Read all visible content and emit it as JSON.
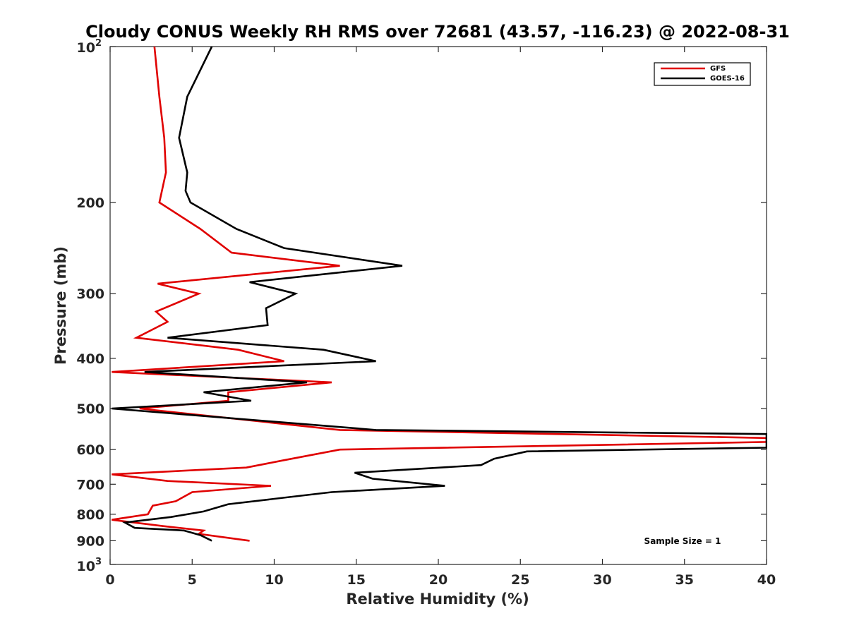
{
  "chart_data": {
    "type": "line",
    "title": "Cloudy CONUS Weekly RH RMS over 72681 (43.57, -116.23) @ 2022-08-31",
    "xlabel": "Relative Humidity (%)",
    "ylabel": "Pressure (mb)",
    "xlim": [
      0,
      40
    ],
    "ylim": [
      100,
      1000
    ],
    "y_scale": "log",
    "y_reversed": true,
    "x_ticks": [
      "0",
      "5",
      "10",
      "15",
      "20",
      "25",
      "30",
      "35",
      "40"
    ],
    "y_ticks": [
      {
        "value": 100,
        "base": "10",
        "exp": "2"
      },
      {
        "value": 200,
        "label": "200"
      },
      {
        "value": 300,
        "label": "300"
      },
      {
        "value": 400,
        "label": "400"
      },
      {
        "value": 500,
        "label": "500"
      },
      {
        "value": 600,
        "label": "600"
      },
      {
        "value": 700,
        "label": "700"
      },
      {
        "value": 800,
        "label": "800"
      },
      {
        "value": 900,
        "label": "900"
      },
      {
        "value": 1000,
        "base": "10",
        "exp": "3"
      }
    ],
    "grid": false,
    "legend_position": "top-right",
    "annotation": "Sample Size = 1",
    "series": [
      {
        "name": "GFS",
        "color": "#e00000",
        "points": [
          {
            "x": 2.7,
            "y": 100
          },
          {
            "x": 3.0,
            "y": 125
          },
          {
            "x": 3.3,
            "y": 150
          },
          {
            "x": 3.4,
            "y": 175
          },
          {
            "x": 3.0,
            "y": 200
          },
          {
            "x": 5.5,
            "y": 225
          },
          {
            "x": 7.4,
            "y": 250
          },
          {
            "x": 14.0,
            "y": 265
          },
          {
            "x": 2.9,
            "y": 287
          },
          {
            "x": 5.4,
            "y": 300
          },
          {
            "x": 2.8,
            "y": 325
          },
          {
            "x": 3.5,
            "y": 340
          },
          {
            "x": 1.6,
            "y": 365
          },
          {
            "x": 7.8,
            "y": 385
          },
          {
            "x": 10.6,
            "y": 405
          },
          {
            "x": 0.1,
            "y": 425
          },
          {
            "x": 13.5,
            "y": 445
          },
          {
            "x": 7.2,
            "y": 465
          },
          {
            "x": 7.2,
            "y": 483
          },
          {
            "x": 1.8,
            "y": 500
          },
          {
            "x": 14.0,
            "y": 550
          },
          {
            "x": 40.0,
            "y": 570
          },
          {
            "x": 40.0,
            "y": 580
          },
          {
            "x": 14.0,
            "y": 600
          },
          {
            "x": 10.5,
            "y": 630
          },
          {
            "x": 8.3,
            "y": 650
          },
          {
            "x": 0.1,
            "y": 670
          },
          {
            "x": 3.5,
            "y": 690
          },
          {
            "x": 9.8,
            "y": 705
          },
          {
            "x": 5.0,
            "y": 725
          },
          {
            "x": 4.0,
            "y": 755
          },
          {
            "x": 2.6,
            "y": 770
          },
          {
            "x": 2.3,
            "y": 800
          },
          {
            "x": 0.1,
            "y": 820
          },
          {
            "x": 3.2,
            "y": 843
          },
          {
            "x": 5.7,
            "y": 860
          },
          {
            "x": 5.4,
            "y": 873
          },
          {
            "x": 8.5,
            "y": 900
          }
        ]
      },
      {
        "name": "GOES-16",
        "color": "#000000",
        "points": [
          {
            "x": 6.2,
            "y": 100
          },
          {
            "x": 4.7,
            "y": 125
          },
          {
            "x": 4.2,
            "y": 150
          },
          {
            "x": 4.7,
            "y": 175
          },
          {
            "x": 4.6,
            "y": 190
          },
          {
            "x": 4.9,
            "y": 200
          },
          {
            "x": 7.7,
            "y": 225
          },
          {
            "x": 10.6,
            "y": 245
          },
          {
            "x": 17.8,
            "y": 265
          },
          {
            "x": 8.5,
            "y": 285
          },
          {
            "x": 11.3,
            "y": 300
          },
          {
            "x": 9.5,
            "y": 320
          },
          {
            "x": 9.6,
            "y": 345
          },
          {
            "x": 3.5,
            "y": 365
          },
          {
            "x": 13.0,
            "y": 385
          },
          {
            "x": 16.2,
            "y": 405
          },
          {
            "x": 2.1,
            "y": 425
          },
          {
            "x": 12.0,
            "y": 445
          },
          {
            "x": 5.7,
            "y": 465
          },
          {
            "x": 8.6,
            "y": 483
          },
          {
            "x": 0.1,
            "y": 500
          },
          {
            "x": 16.2,
            "y": 550
          },
          {
            "x": 40.0,
            "y": 560
          },
          {
            "x": 40.0,
            "y": 595
          },
          {
            "x": 25.4,
            "y": 605
          },
          {
            "x": 23.4,
            "y": 625
          },
          {
            "x": 22.6,
            "y": 643
          },
          {
            "x": 14.9,
            "y": 665
          },
          {
            "x": 16.0,
            "y": 683
          },
          {
            "x": 20.4,
            "y": 705
          },
          {
            "x": 13.5,
            "y": 725
          },
          {
            "x": 7.2,
            "y": 765
          },
          {
            "x": 5.7,
            "y": 790
          },
          {
            "x": 3.7,
            "y": 810
          },
          {
            "x": 0.9,
            "y": 830
          },
          {
            "x": 1.5,
            "y": 850
          },
          {
            "x": 4.5,
            "y": 860
          },
          {
            "x": 5.5,
            "y": 878
          },
          {
            "x": 6.2,
            "y": 900
          }
        ]
      }
    ]
  }
}
